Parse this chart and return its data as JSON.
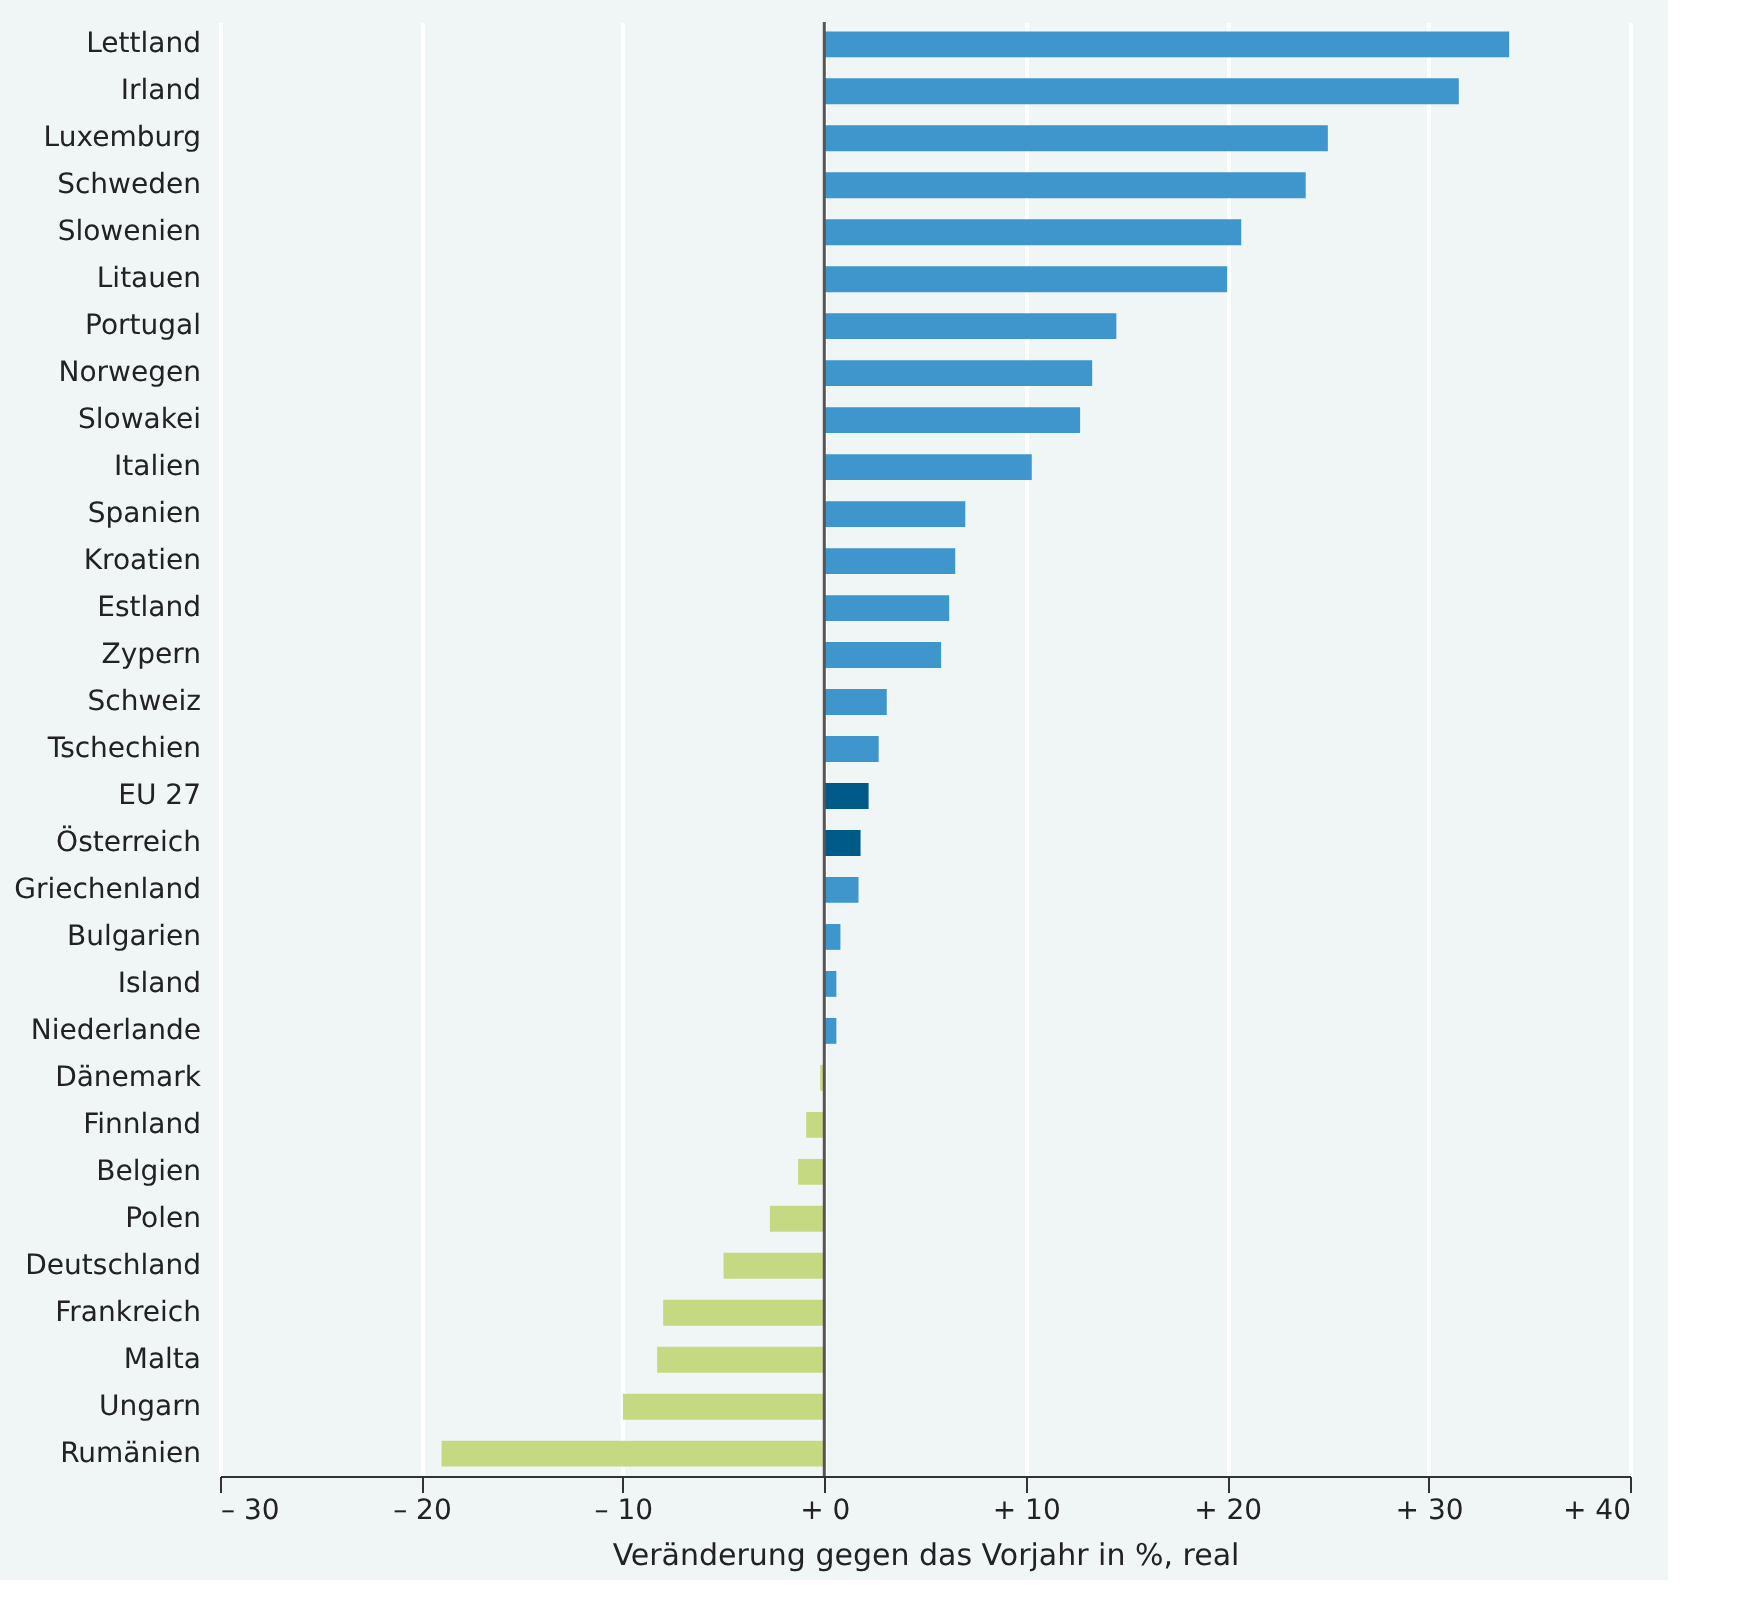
{
  "chart_data": {
    "type": "bar",
    "orientation": "horizontal",
    "xlabel": "Veränderung gegen das Vorjahr in %, real",
    "categories": [
      "Lettland",
      "Irland",
      "Luxemburg",
      "Schweden",
      "Slowenien",
      "Litauen",
      "Portugal",
      "Norwegen",
      "Slowakei",
      "Italien",
      "Spanien",
      "Kroatien",
      "Estland",
      "Zypern",
      "Schweiz",
      "Tschechien",
      "EU 27",
      "Österreich",
      "Griechenland",
      "Bulgarien",
      "Island",
      "Niederlande",
      "Dänemark",
      "Finnland",
      "Belgien",
      "Polen",
      "Deutschland",
      "Frankreich",
      "Malta",
      "Ungarn",
      "Rumänien"
    ],
    "values": [
      34.0,
      31.5,
      25.0,
      23.9,
      20.7,
      20.0,
      14.5,
      13.3,
      12.7,
      10.3,
      7.0,
      6.5,
      6.2,
      5.8,
      3.1,
      2.7,
      2.2,
      1.8,
      1.7,
      0.8,
      0.6,
      0.6,
      -0.2,
      -0.9,
      -1.3,
      -2.7,
      -5.0,
      -8.0,
      -8.3,
      -10.0,
      -19.0
    ],
    "colors": [
      "#3e96cc",
      "#3e96cc",
      "#3e96cc",
      "#3e96cc",
      "#3e96cc",
      "#3e96cc",
      "#3e96cc",
      "#3e96cc",
      "#3e96cc",
      "#3e96cc",
      "#3e96cc",
      "#3e96cc",
      "#3e96cc",
      "#3e96cc",
      "#3e96cc",
      "#3e96cc",
      "#005a87",
      "#005a87",
      "#3e96cc",
      "#3e96cc",
      "#3e96cc",
      "#3e96cc",
      "#c5d982",
      "#c5d982",
      "#c5d982",
      "#c5d982",
      "#c5d982",
      "#c5d982",
      "#c5d982",
      "#c5d982",
      "#c5d982"
    ],
    "xlim": [
      -30,
      40
    ],
    "xticks": [
      {
        "value": -30,
        "label": "– 30"
      },
      {
        "value": -20,
        "label": "– 20"
      },
      {
        "value": -10,
        "label": "– 10"
      },
      {
        "value": 0,
        "label": "+ 0"
      },
      {
        "value": 10,
        "label": "+ 10"
      },
      {
        "value": 20,
        "label": "+ 20"
      },
      {
        "value": 30,
        "label": "+ 30"
      },
      {
        "value": 40,
        "label": "+ 40"
      }
    ],
    "grid": "x",
    "ref_lines": [
      {
        "axis": "x",
        "value": 0,
        "color": "#555555"
      }
    ]
  }
}
